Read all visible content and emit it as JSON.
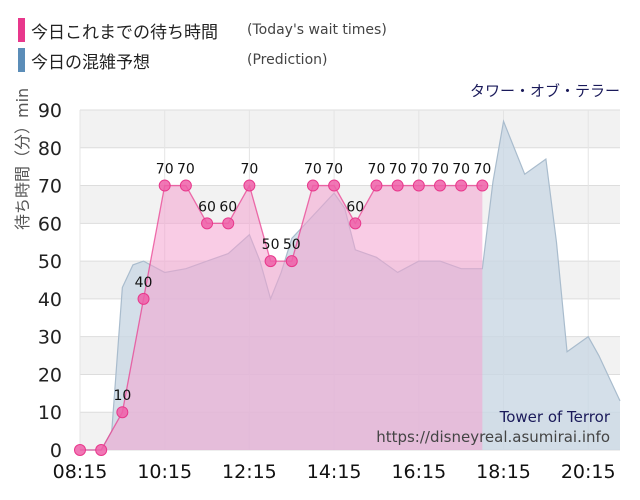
{
  "legend": {
    "actual": {
      "label": "今日これまでの待ち時間",
      "sub": "(Today's wait times)",
      "color": "#e8388c"
    },
    "prediction": {
      "label": "今日の混雑予想",
      "sub": "(Prediction)",
      "color": "#5b8db8"
    }
  },
  "chart_data": {
    "type": "area",
    "title": "タワー・オブ・テラー",
    "ylabel": "待ち時間（分）min",
    "xlabel": "",
    "ylim": [
      0,
      90
    ],
    "yticks": [
      0,
      10,
      20,
      30,
      40,
      50,
      60,
      70,
      80,
      90
    ],
    "xlim": [
      "08:15",
      "21:00"
    ],
    "xticks": [
      "08:15",
      "10:15",
      "12:15",
      "14:15",
      "16:15",
      "18:15",
      "20:15"
    ],
    "grid": true,
    "series": [
      {
        "name": "今日これまでの待ち時間",
        "color": "#e8388c",
        "x": [
          "08:15",
          "08:45",
          "09:15",
          "09:45",
          "10:15",
          "10:45",
          "11:15",
          "11:45",
          "12:15",
          "12:45",
          "13:15",
          "13:45",
          "14:15",
          "14:45",
          "15:15",
          "15:45",
          "16:15",
          "16:45",
          "17:15",
          "17:45"
        ],
        "values": [
          0,
          0,
          10,
          40,
          70,
          70,
          60,
          60,
          70,
          50,
          50,
          70,
          70,
          60,
          70,
          70,
          70,
          70,
          70,
          70
        ]
      },
      {
        "name": "今日の混雑予想",
        "color": "#5b8db8",
        "x": [
          "08:15",
          "08:45",
          "09:00",
          "09:15",
          "09:30",
          "09:45",
          "10:15",
          "10:45",
          "11:15",
          "11:45",
          "12:15",
          "12:30",
          "12:45",
          "13:00",
          "13:15",
          "13:45",
          "14:15",
          "14:30",
          "14:45",
          "15:15",
          "15:45",
          "16:15",
          "16:45",
          "17:15",
          "17:45",
          "18:00",
          "18:15",
          "18:30",
          "18:45",
          "19:15",
          "19:30",
          "19:45",
          "20:15",
          "20:30",
          "20:45",
          "21:00"
        ],
        "values": [
          0,
          0,
          5,
          43,
          49,
          50,
          47,
          48,
          50,
          52,
          57,
          50,
          40,
          47,
          56,
          62,
          68,
          64,
          53,
          51,
          47,
          50,
          50,
          48,
          48,
          71,
          87,
          80,
          73,
          77,
          55,
          26,
          30,
          25,
          19,
          13
        ]
      }
    ],
    "data_labels": [
      0,
      0,
      10,
      40,
      70,
      70,
      60,
      60,
      70,
      50,
      50,
      70,
      70,
      60,
      70,
      70,
      70,
      70,
      70,
      70
    ]
  },
  "watermark": {
    "name": "Tower of Terror",
    "url": "https://disneyreal.asumirai.info"
  },
  "colors": {
    "plot_bg": "#f2f2f2",
    "actual_fill": "#f4a3cf",
    "actual_line": "#e8388c",
    "pred_fill": "#c9d7e3",
    "pred_line": "#a9bccd"
  }
}
